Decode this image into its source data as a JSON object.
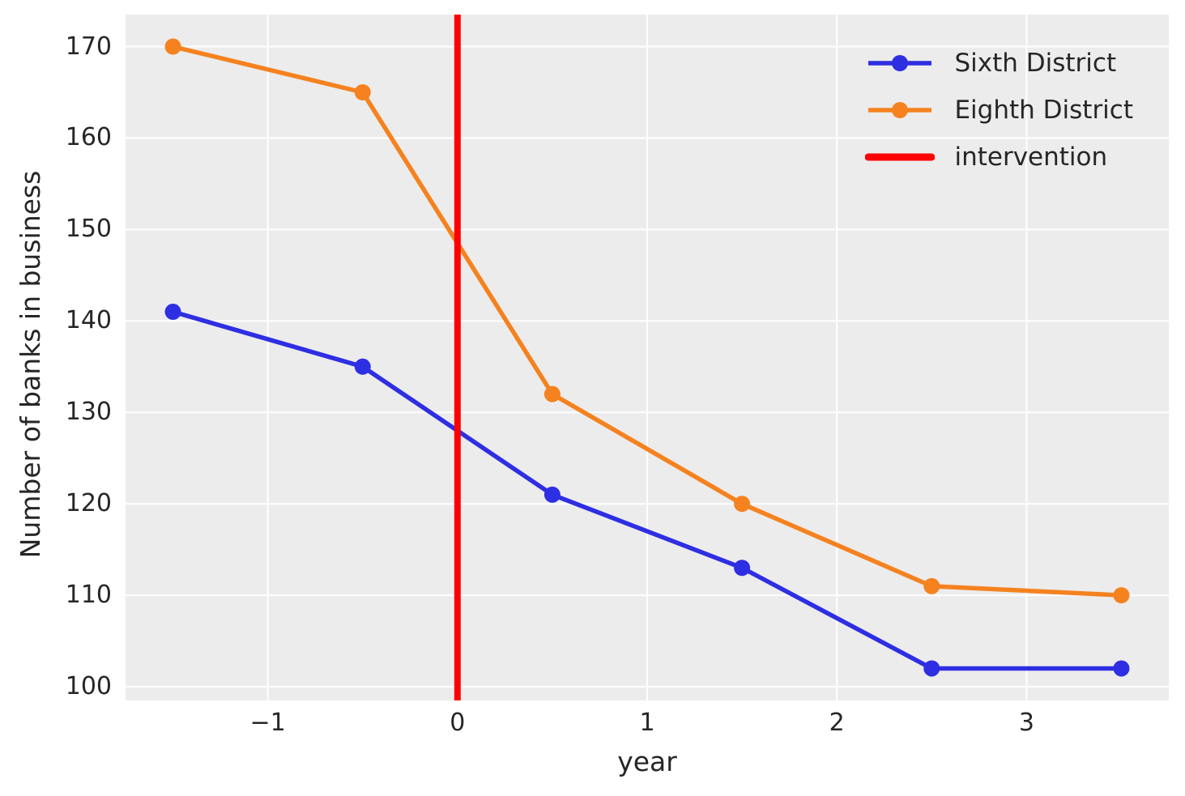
{
  "figure": {
    "background": "#ffffff",
    "plot_background": "#ececec",
    "grid_color": "#ffffff",
    "text_color": "#262626"
  },
  "chart_data": {
    "type": "line",
    "title": "",
    "xlabel": "year",
    "ylabel": "Number of banks in business",
    "x": [
      -1.5,
      -0.5,
      0.5,
      1.5,
      2.5,
      3.5
    ],
    "series": [
      {
        "name": "Sixth District",
        "color": "#2e2ee2",
        "values": [
          141,
          135,
          121,
          113,
          102,
          102
        ]
      },
      {
        "name": "Eighth District",
        "color": "#f5821f",
        "values": [
          170,
          165,
          132,
          120,
          111,
          110
        ]
      }
    ],
    "vline": {
      "label": "intervention",
      "x": 0,
      "color": "#ff0000"
    },
    "xlim": [
      -1.75,
      3.75
    ],
    "ylim": [
      98.5,
      173.5
    ],
    "xticks": {
      "values": [
        -1,
        0,
        1,
        2,
        3
      ],
      "labels": [
        "−1",
        "0",
        "1",
        "2",
        "3"
      ]
    },
    "yticks": {
      "values": [
        100,
        110,
        120,
        130,
        140,
        150,
        160,
        170
      ],
      "labels": [
        "100",
        "110",
        "120",
        "130",
        "140",
        "150",
        "160",
        "170"
      ]
    },
    "grid": true,
    "legend_position": "upper right",
    "marker": "circle"
  }
}
